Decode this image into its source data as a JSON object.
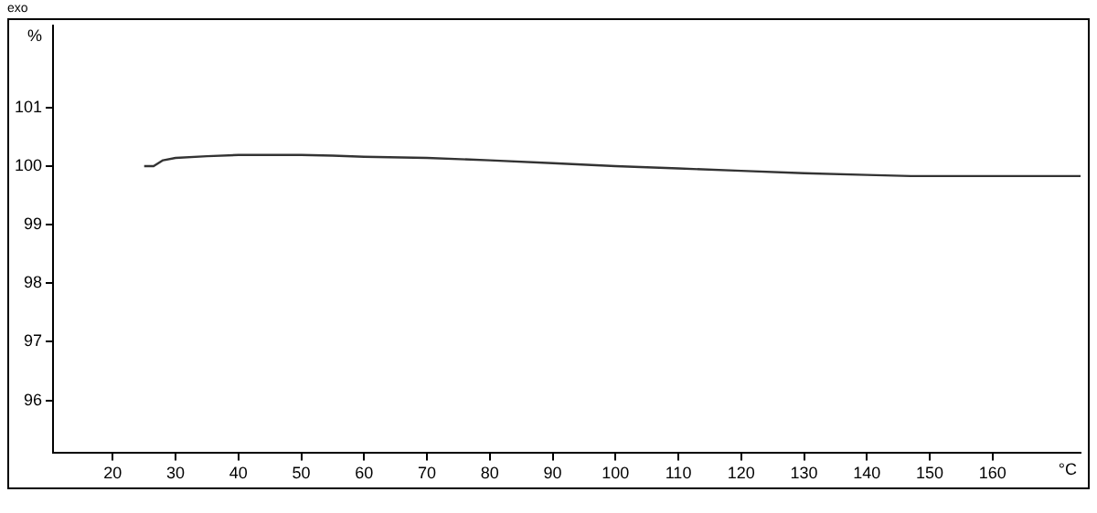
{
  "chart_data": {
    "type": "line",
    "xlabel": "°C",
    "ylabel": "%",
    "annotations": [
      "exo"
    ],
    "x": [
      25,
      26.5,
      28,
      30,
      35,
      40,
      50,
      55,
      60,
      70,
      80,
      90,
      100,
      110,
      120,
      130,
      140,
      147,
      160,
      174
    ],
    "series": [
      {
        "color": "#333333",
        "values": [
          100.0,
          100.0,
          100.1,
          100.14,
          100.17,
          100.19,
          100.19,
          100.18,
          100.16,
          100.14,
          100.1,
          100.05,
          100.0,
          99.96,
          99.92,
          99.88,
          99.85,
          99.83,
          99.83,
          99.83
        ]
      }
    ],
    "xlim": [
      10.5,
      174
    ],
    "xticks": [
      20,
      30,
      40,
      50,
      60,
      70,
      80,
      90,
      100,
      110,
      120,
      130,
      140,
      150,
      160
    ],
    "ylim": [
      95.1,
      102.4
    ],
    "yticks": [
      96,
      97,
      98,
      99,
      100,
      101
    ],
    "grid": false,
    "legend": false,
    "marker": "none",
    "line_style": "solid"
  }
}
